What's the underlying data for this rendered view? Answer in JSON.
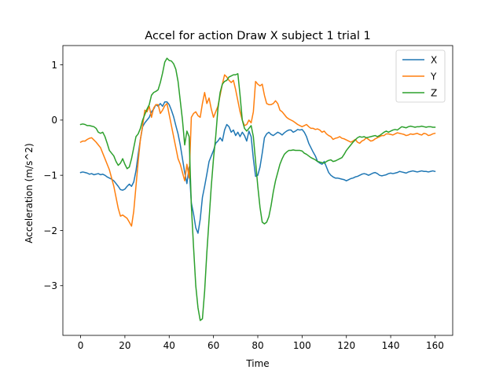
{
  "chart_data": {
    "type": "line",
    "title": "Accel for action Draw X subject 1 trial 1",
    "xlabel": "Time",
    "ylabel": "Acceleration (m/s^2)",
    "xlim": [
      -8,
      168
    ],
    "ylim": [
      -3.9,
      1.35
    ],
    "xticks": [
      0,
      20,
      40,
      60,
      80,
      100,
      120,
      140,
      160
    ],
    "yticks": [
      -3,
      -2,
      -1,
      0,
      1
    ],
    "ytick_labels": [
      "−3",
      "−2",
      "−1",
      "0",
      "1"
    ],
    "grid": false,
    "legend_position": "top-right",
    "x_start": 0,
    "series": [
      {
        "name": "X",
        "color": "#1f77b4",
        "values": [
          -0.95,
          -0.94,
          -0.95,
          -0.96,
          -0.98,
          -0.97,
          -0.99,
          -0.98,
          -0.97,
          -0.99,
          -0.98,
          -1.0,
          -1.03,
          -1.05,
          -1.07,
          -1.1,
          -1.15,
          -1.2,
          -1.26,
          -1.27,
          -1.25,
          -1.2,
          -1.16,
          -1.2,
          -1.12,
          -0.92,
          -0.62,
          -0.35,
          -0.12,
          -0.05,
          0.0,
          0.05,
          0.15,
          0.2,
          0.28,
          0.25,
          0.3,
          0.25,
          0.33,
          0.33,
          0.28,
          0.18,
          0.06,
          -0.1,
          -0.25,
          -0.45,
          -0.7,
          -0.95,
          -1.15,
          -0.85,
          -1.5,
          -1.7,
          -1.95,
          -2.05,
          -1.8,
          -1.4,
          -1.2,
          -0.98,
          -0.75,
          -0.65,
          -0.55,
          -0.42,
          -0.38,
          -0.32,
          -0.38,
          -0.18,
          -0.08,
          -0.12,
          -0.22,
          -0.18,
          -0.28,
          -0.22,
          -0.3,
          -0.22,
          -0.28,
          -0.38,
          -0.2,
          -0.3,
          -0.7,
          -1.02,
          -1.0,
          -0.85,
          -0.6,
          -0.32,
          -0.25,
          -0.22,
          -0.26,
          -0.28,
          -0.25,
          -0.22,
          -0.24,
          -0.27,
          -0.23,
          -0.2,
          -0.18,
          -0.18,
          -0.22,
          -0.2,
          -0.17,
          -0.18,
          -0.17,
          -0.22,
          -0.3,
          -0.42,
          -0.5,
          -0.58,
          -0.65,
          -0.75,
          -0.78,
          -0.8,
          -0.75,
          -0.85,
          -0.95,
          -1.0,
          -1.03,
          -1.05,
          -1.05,
          -1.06,
          -1.07,
          -1.08,
          -1.1,
          -1.08,
          -1.06,
          -1.05,
          -1.03,
          -1.02,
          -1.0,
          -0.98,
          -0.97,
          -0.98,
          -1.0,
          -0.98,
          -0.96,
          -0.95,
          -0.97,
          -1.0,
          -1.01,
          -1.0,
          -0.99,
          -0.97,
          -0.96,
          -0.97,
          -0.96,
          -0.95,
          -0.93,
          -0.94,
          -0.95,
          -0.96,
          -0.94,
          -0.93,
          -0.92,
          -0.93,
          -0.94,
          -0.93,
          -0.92,
          -0.93,
          -0.93,
          -0.94,
          -0.93,
          -0.92,
          -0.93
        ]
      },
      {
        "name": "Y",
        "color": "#ff7f0e",
        "values": [
          -0.4,
          -0.38,
          -0.38,
          -0.35,
          -0.33,
          -0.32,
          -0.36,
          -0.4,
          -0.45,
          -0.5,
          -0.6,
          -0.7,
          -0.8,
          -0.9,
          -1.05,
          -1.2,
          -1.4,
          -1.6,
          -1.74,
          -1.72,
          -1.75,
          -1.78,
          -1.85,
          -1.92,
          -1.65,
          -1.2,
          -0.75,
          -0.35,
          -0.1,
          0.18,
          0.15,
          0.25,
          0.05,
          0.22,
          0.28,
          0.28,
          0.12,
          0.18,
          0.26,
          0.3,
          0.1,
          -0.1,
          -0.3,
          -0.5,
          -0.7,
          -0.8,
          -0.95,
          -1.1,
          -0.8,
          -1.05,
          0.05,
          0.12,
          0.15,
          0.08,
          0.05,
          0.3,
          0.5,
          0.3,
          0.4,
          0.2,
          0.05,
          0.15,
          0.25,
          0.45,
          0.65,
          0.82,
          0.78,
          0.72,
          0.68,
          0.72,
          0.55,
          0.35,
          0.15,
          0.0,
          -0.1,
          -0.08,
          0.0,
          -0.05,
          0.15,
          0.7,
          0.65,
          0.62,
          0.65,
          0.45,
          0.3,
          0.28,
          0.28,
          0.3,
          0.35,
          0.3,
          0.18,
          0.15,
          0.1,
          0.05,
          0.02,
          0.0,
          -0.02,
          -0.05,
          -0.08,
          -0.1,
          -0.12,
          -0.1,
          -0.08,
          -0.12,
          -0.15,
          -0.15,
          -0.17,
          -0.16,
          -0.18,
          -0.22,
          -0.2,
          -0.25,
          -0.28,
          -0.3,
          -0.35,
          -0.33,
          -0.32,
          -0.3,
          -0.33,
          -0.34,
          -0.36,
          -0.38,
          -0.4,
          -0.38,
          -0.35,
          -0.4,
          -0.42,
          -0.38,
          -0.36,
          -0.32,
          -0.35,
          -0.38,
          -0.37,
          -0.34,
          -0.32,
          -0.3,
          -0.28,
          -0.28,
          -0.25,
          -0.25,
          -0.26,
          -0.27,
          -0.25,
          -0.23,
          -0.24,
          -0.25,
          -0.26,
          -0.28,
          -0.27,
          -0.25,
          -0.26,
          -0.25,
          -0.24,
          -0.26,
          -0.27,
          -0.24,
          -0.25,
          -0.28,
          -0.27,
          -0.25,
          -0.24
        ]
      },
      {
        "name": "Z",
        "color": "#2ca02c",
        "values": [
          -0.08,
          -0.07,
          -0.08,
          -0.1,
          -0.1,
          -0.11,
          -0.12,
          -0.15,
          -0.22,
          -0.24,
          -0.22,
          -0.3,
          -0.42,
          -0.55,
          -0.6,
          -0.65,
          -0.75,
          -0.82,
          -0.78,
          -0.7,
          -0.8,
          -0.88,
          -0.85,
          -0.7,
          -0.5,
          -0.3,
          -0.25,
          -0.15,
          0.0,
          0.1,
          0.2,
          0.28,
          0.45,
          0.5,
          0.52,
          0.55,
          0.68,
          0.85,
          1.05,
          1.12,
          1.08,
          1.07,
          1.02,
          0.92,
          0.7,
          0.35,
          0.0,
          -0.45,
          -0.2,
          -0.3,
          -1.55,
          -2.3,
          -3.0,
          -3.4,
          -3.63,
          -3.6,
          -3.1,
          -2.4,
          -1.8,
          -1.2,
          -0.7,
          -0.3,
          0.2,
          0.5,
          0.65,
          0.7,
          0.72,
          0.78,
          0.8,
          0.82,
          0.82,
          0.84,
          0.45,
          0.0,
          -0.15,
          -0.2,
          -0.15,
          -0.1,
          -0.3,
          -0.75,
          -1.2,
          -1.58,
          -1.85,
          -1.88,
          -1.85,
          -1.75,
          -1.55,
          -1.3,
          -1.1,
          -0.95,
          -0.8,
          -0.7,
          -0.62,
          -0.58,
          -0.55,
          -0.55,
          -0.54,
          -0.55,
          -0.55,
          -0.55,
          -0.56,
          -0.6,
          -0.62,
          -0.65,
          -0.68,
          -0.7,
          -0.72,
          -0.75,
          -0.76,
          -0.77,
          -0.78,
          -0.75,
          -0.73,
          -0.72,
          -0.75,
          -0.74,
          -0.72,
          -0.7,
          -0.68,
          -0.62,
          -0.55,
          -0.5,
          -0.45,
          -0.4,
          -0.36,
          -0.32,
          -0.3,
          -0.31,
          -0.3,
          -0.32,
          -0.31,
          -0.3,
          -0.29,
          -0.28,
          -0.3,
          -0.28,
          -0.25,
          -0.22,
          -0.2,
          -0.22,
          -0.2,
          -0.18,
          -0.17,
          -0.18,
          -0.15,
          -0.12,
          -0.13,
          -0.14,
          -0.12,
          -0.11,
          -0.12,
          -0.13,
          -0.12,
          -0.12,
          -0.11,
          -0.12,
          -0.13,
          -0.12,
          -0.12,
          -0.13,
          -0.13
        ]
      }
    ]
  }
}
